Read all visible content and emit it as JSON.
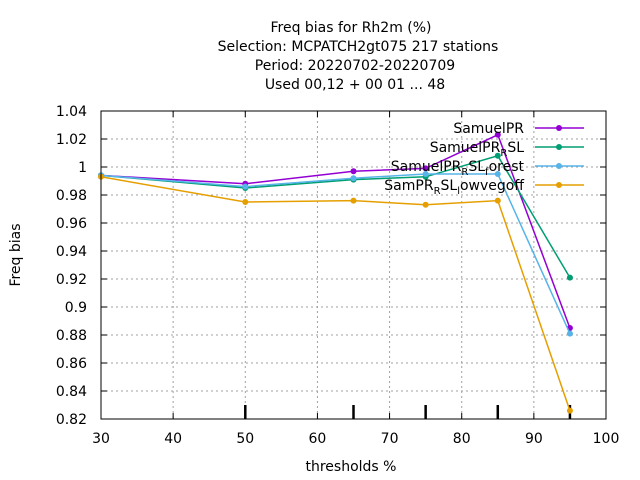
{
  "chart_data": {
    "type": "line",
    "title_lines": [
      "Freq bias  for Rh2m (%)",
      "Selection: MCPATCH2gt075    217 stations",
      "Period: 20220702-20220709",
      "Used  00,12  + 00 01 ... 48"
    ],
    "xlabel": "thresholds %",
    "ylabel": "Freq bias",
    "xlim": [
      30,
      100
    ],
    "ylim": [
      0.82,
      1.04
    ],
    "xticks": [
      30,
      40,
      50,
      60,
      70,
      80,
      90,
      100
    ],
    "yticks": [
      0.82,
      0.84,
      0.86,
      0.88,
      0.9,
      0.92,
      0.94,
      0.96,
      0.98,
      1,
      1.02,
      1.04
    ],
    "xtick_labels": [
      "30",
      "40",
      "50",
      "60",
      "70",
      "80",
      "90",
      "100"
    ],
    "ytick_labels": [
      "0.82",
      "0.84",
      "0.86",
      "0.88",
      "0.9",
      "0.92",
      "0.94",
      "0.96",
      "0.98",
      "1",
      "1.02",
      "1.04"
    ],
    "grid": true,
    "legend_position": "top-right",
    "x": [
      30,
      50,
      65,
      75,
      85,
      95
    ],
    "series": [
      {
        "name": "SamuelPR",
        "legend_parts": [
          {
            "t": "SamuelPR",
            "sub": false
          }
        ],
        "color": "#9400d3",
        "values": [
          0.994,
          0.988,
          0.997,
          0.999,
          1.023,
          0.885
        ]
      },
      {
        "name": "SamuelPR_SL",
        "legend_parts": [
          {
            "t": "SamuelPR",
            "sub": false
          },
          {
            "t": "R",
            "sub": true
          },
          {
            "t": "SL",
            "sub": false
          }
        ],
        "color": "#009e73",
        "values": [
          0.994,
          0.985,
          0.991,
          0.993,
          1.008,
          0.921
        ]
      },
      {
        "name": "SamuelPR_R_SL_forest",
        "legend_parts": [
          {
            "t": "SamuelPR",
            "sub": false
          },
          {
            "t": "R",
            "sub": true
          },
          {
            "t": "SL",
            "sub": false
          },
          {
            "t": "f",
            "sub": true
          },
          {
            "t": "orest",
            "sub": false
          }
        ],
        "color": "#56b4e9",
        "values": [
          0.994,
          0.986,
          0.992,
          0.995,
          0.995,
          0.881
        ]
      },
      {
        "name": "SamPR_R_SL_lowvegoff",
        "legend_parts": [
          {
            "t": "SamPR",
            "sub": false
          },
          {
            "t": "R",
            "sub": true
          },
          {
            "t": "SL",
            "sub": false
          },
          {
            "t": "l",
            "sub": true
          },
          {
            "t": "owvegoff",
            "sub": false
          }
        ],
        "color": "#e69f00",
        "values": [
          0.993,
          0.975,
          0.976,
          0.973,
          0.976,
          0.826
        ]
      }
    ],
    "sample_size_marks_x": [
      50,
      65,
      75,
      85,
      95
    ]
  }
}
